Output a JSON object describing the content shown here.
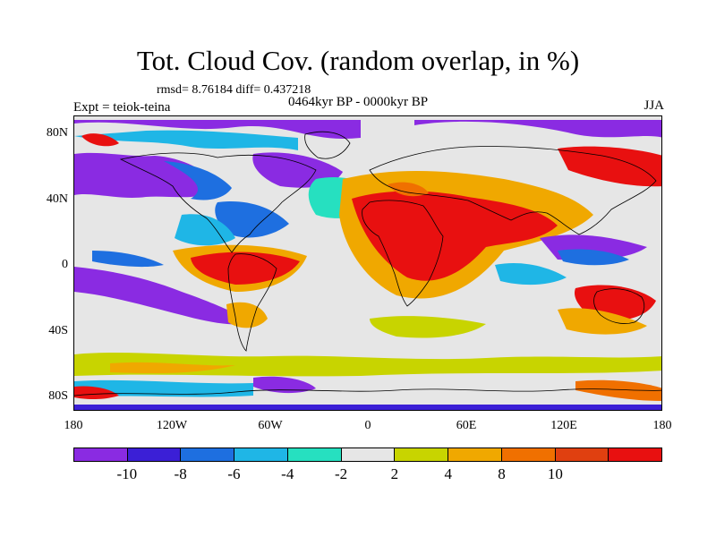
{
  "title": "Tot. Cloud Cov. (random overlap, in %)",
  "stats": "rmsd= 8.76184 diff= 0.437218",
  "experiment": "Expt = teiok-teina",
  "period": "0464kyr BP - 0000kyr BP",
  "season": "JJA",
  "map": {
    "lat_range": [
      -90,
      90
    ],
    "lon_range": [
      -180,
      180
    ],
    "lat_ticks": [
      "80N",
      "40N",
      "0",
      "40S",
      "80S"
    ],
    "lon_ticks": [
      "180",
      "120W",
      "60W",
      "0",
      "60E",
      "120E",
      "180"
    ]
  },
  "colorbar": {
    "colors": [
      "#8a2be2",
      "#3b1fd6",
      "#1e6fe0",
      "#1fb6e6",
      "#26e0c0",
      "#e6e6e6",
      "#c8d400",
      "#f0a800",
      "#f07000",
      "#e04010",
      "#e81010"
    ],
    "labels": [
      "-10",
      "-8",
      "-6",
      "-4",
      "-2",
      "2",
      "4",
      "8",
      "10"
    ]
  },
  "colors": {
    "land_outline": "#000000",
    "neutral": "#e6e6e6"
  }
}
